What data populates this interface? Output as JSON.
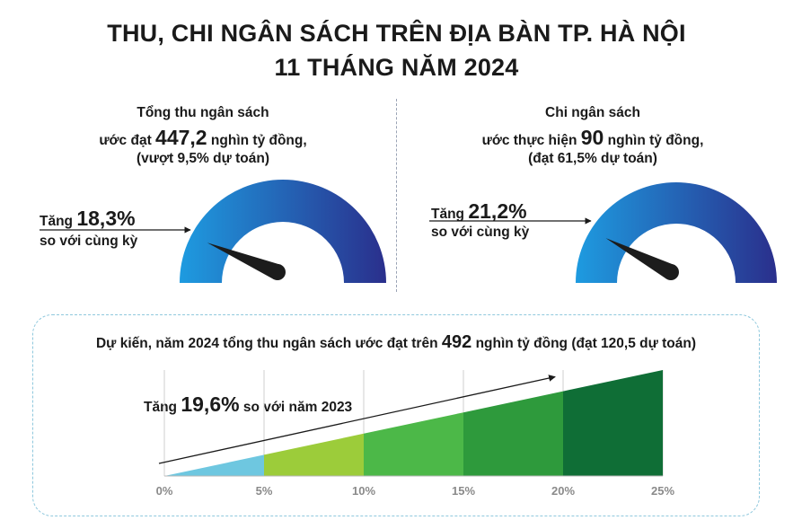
{
  "title": {
    "line1": "THU, CHI NGÂN SÁCH TRÊN ĐỊA BÀN TP. HÀ NỘI",
    "line2": "11 THÁNG NĂM 2024"
  },
  "revenue": {
    "heading": "Tổng thu ngân sách",
    "line_prefix": "ước đạt",
    "value": "447,2",
    "line_suffix": "nghìn tỷ đồng,",
    "note": "(vượt 9,5% dự toán)",
    "growth_prefix": "Tăng",
    "growth_value": "18,3%",
    "growth_suffix": "so với cùng kỳ"
  },
  "expenditure": {
    "heading": "Chi ngân sách",
    "line_prefix": "ước thực hiện",
    "value": "90",
    "line_suffix": "nghìn tỷ đồng,",
    "note": "(đạt 61,5% dự toán)",
    "growth_prefix": "Tăng",
    "growth_value": "21,2%",
    "growth_suffix": "so với cùng kỳ"
  },
  "forecast": {
    "prefix": "Dự kiến, năm 2024 tổng thu ngân sách ước đạt trên",
    "value": "492",
    "suffix": "nghìn tỷ đồng (đạt 120,5 dự toán)",
    "growth_prefix": "Tăng",
    "growth_value": "19,6%",
    "growth_suffix": "so với năm 2023"
  },
  "colors": {
    "gauge_light": "#1e9be0",
    "gauge_dark": "#2a2f8c",
    "needle": "#1c1c1c",
    "band_colors": [
      "#6ec7e0",
      "#9ccc3a",
      "#4cb848",
      "#2e9a3c",
      "#0f6e36"
    ],
    "panel_border": "#8fc8dd"
  },
  "chart_data": [
    {
      "type": "gauge",
      "label": "Tổng thu ngân sách",
      "value_percent": 18.3
    },
    {
      "type": "gauge",
      "label": "Chi ngân sách",
      "value_percent": 21.2
    },
    {
      "type": "area",
      "x_ticks": [
        "0%",
        "5%",
        "10%",
        "15%",
        "20%",
        "25%"
      ],
      "x_tick_values": [
        0,
        5,
        10,
        15,
        20,
        25
      ],
      "xlim": [
        0,
        25
      ],
      "value": 19.6,
      "grid": true
    }
  ]
}
